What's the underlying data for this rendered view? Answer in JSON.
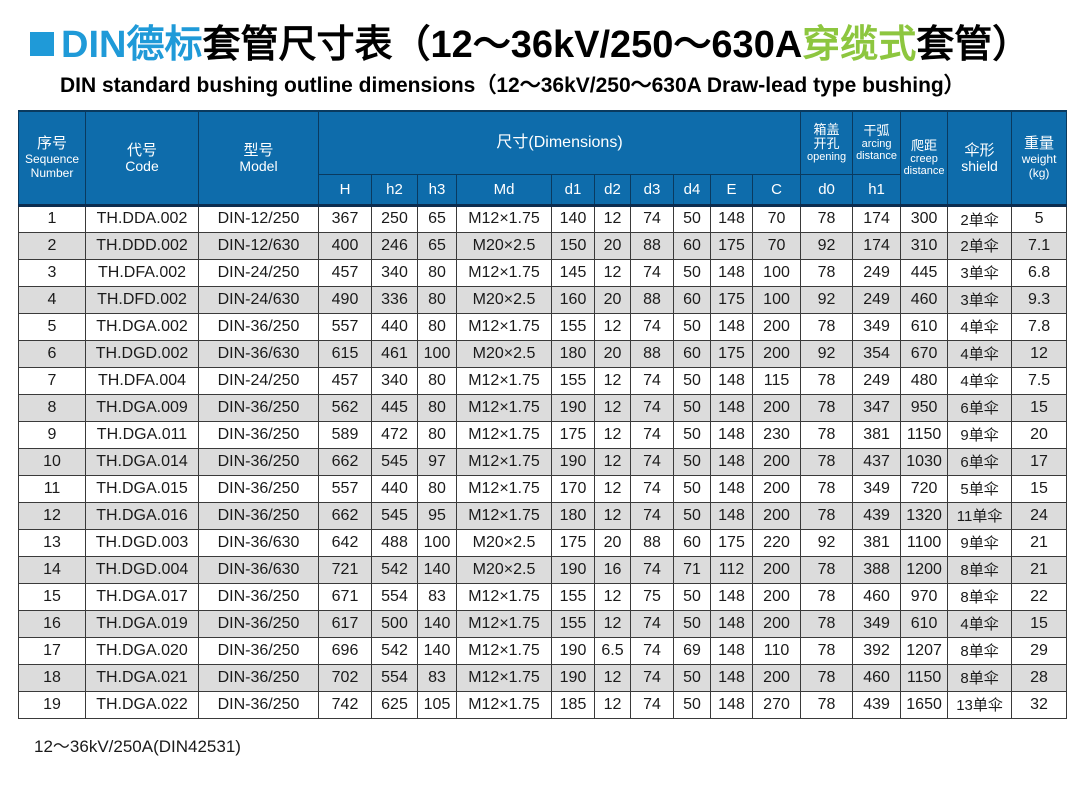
{
  "title": {
    "blue": "DIN德标",
    "black1": "套管尺寸表（12～36kV/250～630A",
    "green": "穿缆式",
    "black2": "套管）",
    "subtitle": "DIN standard bushing outline dimensions（12～36kV/250～630A Draw-lead type bushing）"
  },
  "colors": {
    "header_bg": "#0e6cab",
    "title_blue": "#1f9ad8",
    "title_green": "#8dc63f",
    "row_stripe": "#dcdcdc",
    "header_border": "#0a3a5f"
  },
  "table": {
    "header": {
      "sequence": {
        "cn": "序号",
        "en1": "Sequence",
        "en2": "Number"
      },
      "code": {
        "cn": "代号",
        "en": "Code"
      },
      "model": {
        "cn": "型号",
        "en": "Model"
      },
      "dimensions_label": "尺寸(Dimensions)",
      "dim_cols": [
        "H",
        "h2",
        "h3",
        "Md",
        "d1",
        "d2",
        "d3",
        "d4",
        "E",
        "C"
      ],
      "opening": {
        "cn1": "箱盖",
        "cn2": "开孔",
        "en": "opening",
        "sub": "d0"
      },
      "arcing": {
        "cn": "干弧",
        "en1": "arcing",
        "en2": "distance",
        "sub": "h1"
      },
      "creep": {
        "cn": "爬距",
        "en1": "creep",
        "en2": "distance"
      },
      "shield": {
        "cn": "伞形",
        "en": "shield"
      },
      "weight": {
        "cn": "重量",
        "en": "weight",
        "unit": "(kg)"
      }
    },
    "columns_order": [
      "seq",
      "code",
      "model",
      "H",
      "h2",
      "h3",
      "Md",
      "d1",
      "d2",
      "d3",
      "d4",
      "E",
      "C",
      "d0",
      "h1",
      "creep",
      "shield",
      "weight"
    ],
    "rows": [
      [
        "1",
        "TH.DDA.002",
        "DIN-12/250",
        "367",
        "250",
        "65",
        "M12×1.75",
        "140",
        "12",
        "74",
        "50",
        "148",
        "70",
        "78",
        "174",
        "300",
        "2单伞",
        "5"
      ],
      [
        "2",
        "TH.DDD.002",
        "DIN-12/630",
        "400",
        "246",
        "65",
        "M20×2.5",
        "150",
        "20",
        "88",
        "60",
        "175",
        "70",
        "92",
        "174",
        "310",
        "2单伞",
        "7.1"
      ],
      [
        "3",
        "TH.DFA.002",
        "DIN-24/250",
        "457",
        "340",
        "80",
        "M12×1.75",
        "145",
        "12",
        "74",
        "50",
        "148",
        "100",
        "78",
        "249",
        "445",
        "3单伞",
        "6.8"
      ],
      [
        "4",
        "TH.DFD.002",
        "DIN-24/630",
        "490",
        "336",
        "80",
        "M20×2.5",
        "160",
        "20",
        "88",
        "60",
        "175",
        "100",
        "92",
        "249",
        "460",
        "3单伞",
        "9.3"
      ],
      [
        "5",
        "TH.DGA.002",
        "DIN-36/250",
        "557",
        "440",
        "80",
        "M12×1.75",
        "155",
        "12",
        "74",
        "50",
        "148",
        "200",
        "78",
        "349",
        "610",
        "4单伞",
        "7.8"
      ],
      [
        "6",
        "TH.DGD.002",
        "DIN-36/630",
        "615",
        "461",
        "100",
        "M20×2.5",
        "180",
        "20",
        "88",
        "60",
        "175",
        "200",
        "92",
        "354",
        "670",
        "4单伞",
        "12"
      ],
      [
        "7",
        "TH.DFA.004",
        "DIN-24/250",
        "457",
        "340",
        "80",
        "M12×1.75",
        "155",
        "12",
        "74",
        "50",
        "148",
        "115",
        "78",
        "249",
        "480",
        "4单伞",
        "7.5"
      ],
      [
        "8",
        "TH.DGA.009",
        "DIN-36/250",
        "562",
        "445",
        "80",
        "M12×1.75",
        "190",
        "12",
        "74",
        "50",
        "148",
        "200",
        "78",
        "347",
        "950",
        "6单伞",
        "15"
      ],
      [
        "9",
        "TH.DGA.011",
        "DIN-36/250",
        "589",
        "472",
        "80",
        "M12×1.75",
        "175",
        "12",
        "74",
        "50",
        "148",
        "230",
        "78",
        "381",
        "1150",
        "9单伞",
        "20"
      ],
      [
        "10",
        "TH.DGA.014",
        "DIN-36/250",
        "662",
        "545",
        "97",
        "M12×1.75",
        "190",
        "12",
        "74",
        "50",
        "148",
        "200",
        "78",
        "437",
        "1030",
        "6单伞",
        "17"
      ],
      [
        "11",
        "TH.DGA.015",
        "DIN-36/250",
        "557",
        "440",
        "80",
        "M12×1.75",
        "170",
        "12",
        "74",
        "50",
        "148",
        "200",
        "78",
        "349",
        "720",
        "5单伞",
        "15"
      ],
      [
        "12",
        "TH.DGA.016",
        "DIN-36/250",
        "662",
        "545",
        "95",
        "M12×1.75",
        "180",
        "12",
        "74",
        "50",
        "148",
        "200",
        "78",
        "439",
        "1320",
        "11单伞",
        "24"
      ],
      [
        "13",
        "TH.DGD.003",
        "DIN-36/630",
        "642",
        "488",
        "100",
        "M20×2.5",
        "175",
        "20",
        "88",
        "60",
        "175",
        "220",
        "92",
        "381",
        "1100",
        "9单伞",
        "21"
      ],
      [
        "14",
        "TH.DGD.004",
        "DIN-36/630",
        "721",
        "542",
        "140",
        "M20×2.5",
        "190",
        "16",
        "74",
        "71",
        "112",
        "200",
        "78",
        "388",
        "1200",
        "8单伞",
        "21"
      ],
      [
        "15",
        "TH.DGA.017",
        "DIN-36/250",
        "671",
        "554",
        "83",
        "M12×1.75",
        "155",
        "12",
        "75",
        "50",
        "148",
        "200",
        "78",
        "460",
        "970",
        "8单伞",
        "22"
      ],
      [
        "16",
        "TH.DGA.019",
        "DIN-36/250",
        "617",
        "500",
        "140",
        "M12×1.75",
        "155",
        "12",
        "74",
        "50",
        "148",
        "200",
        "78",
        "349",
        "610",
        "4单伞",
        "15"
      ],
      [
        "17",
        "TH.DGA.020",
        "DIN-36/250",
        "696",
        "542",
        "140",
        "M12×1.75",
        "190",
        "6.5",
        "74",
        "69",
        "148",
        "110",
        "78",
        "392",
        "1207",
        "8单伞",
        "29"
      ],
      [
        "18",
        "TH.DGA.021",
        "DIN-36/250",
        "702",
        "554",
        "83",
        "M12×1.75",
        "190",
        "12",
        "74",
        "50",
        "148",
        "200",
        "78",
        "460",
        "1150",
        "8单伞",
        "28"
      ],
      [
        "19",
        "TH.DGA.022",
        "DIN-36/250",
        "742",
        "625",
        "105",
        "M12×1.75",
        "185",
        "12",
        "74",
        "50",
        "148",
        "270",
        "78",
        "439",
        "1650",
        "13单伞",
        "32"
      ]
    ]
  },
  "footer": {
    "note": "12～36kV/250A(DIN42531)"
  }
}
